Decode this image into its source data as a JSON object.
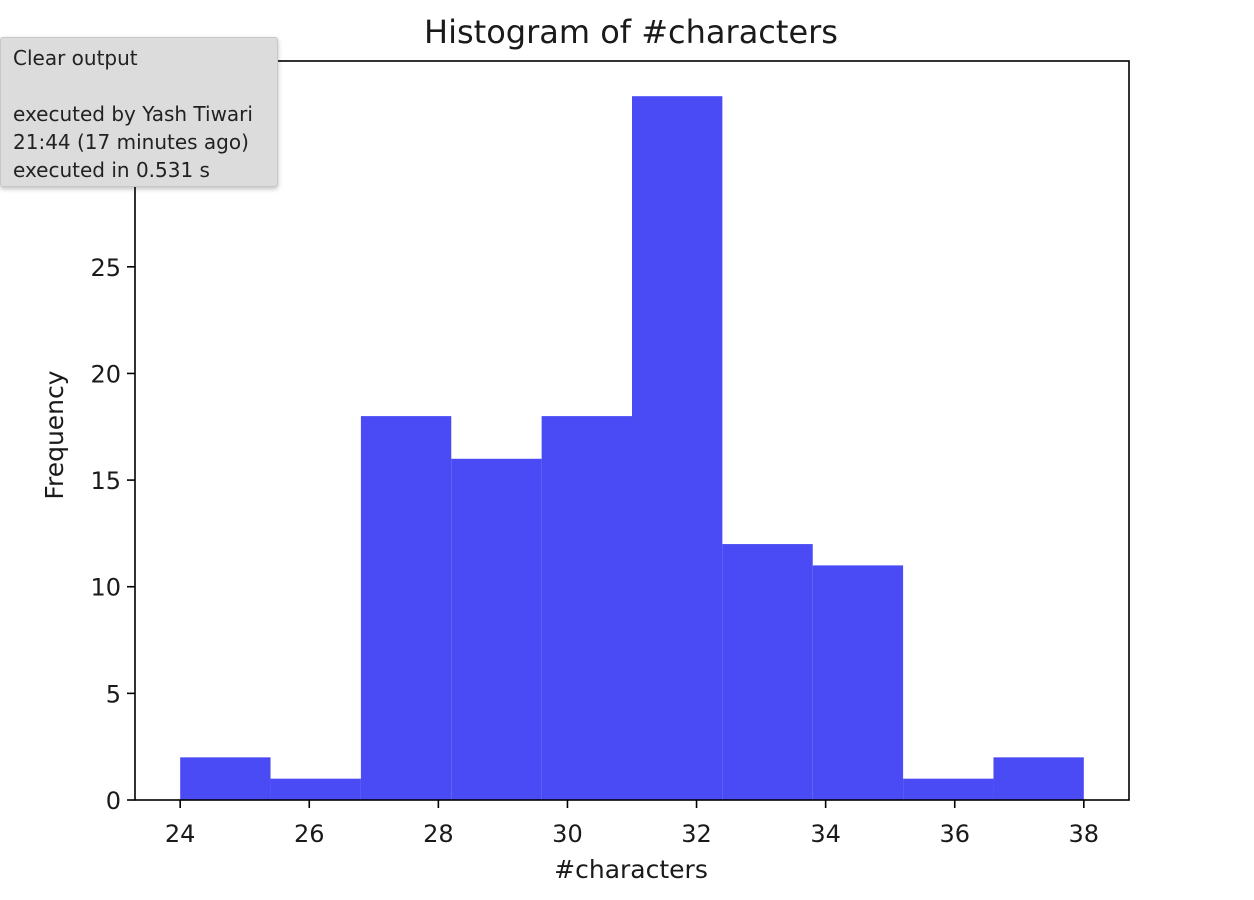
{
  "chart_data": {
    "type": "bar",
    "title": "Histogram of #characters",
    "xlabel": "#characters",
    "ylabel": "Frequency",
    "bin_edges": [
      24,
      25.4,
      26.8,
      28.2,
      29.6,
      31.0,
      32.4,
      33.8,
      35.2,
      36.6,
      38
    ],
    "values": [
      2,
      1,
      18,
      16,
      18,
      33,
      12,
      11,
      1,
      2
    ],
    "xlim": [
      23.3,
      38.7
    ],
    "ylim": [
      0,
      34.65
    ],
    "xticks": [
      "24",
      "26",
      "28",
      "30",
      "32",
      "34",
      "36",
      "38"
    ],
    "yticks": [
      "0",
      "5",
      "10",
      "15",
      "20",
      "25"
    ],
    "bar_color": "#4b4bf5",
    "grid": false
  },
  "tooltip": {
    "action": "Clear output",
    "executed_by": "executed by Yash Tiwari",
    "time": "21:44 (17 minutes ago)",
    "duration": "executed in 0.531 s"
  }
}
